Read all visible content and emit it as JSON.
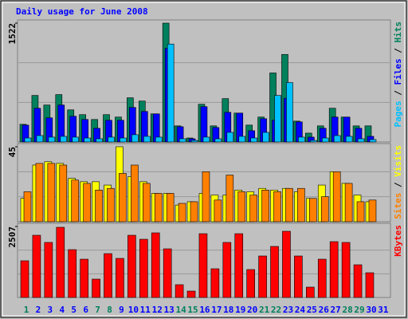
{
  "title": "Daily usage for June 2008",
  "chart_data": [
    {
      "type": "bar",
      "ylim": [
        0,
        1522
      ],
      "yticks": [
        1522
      ],
      "series": [
        {
          "name": "Hits",
          "color": "#00805c",
          "values": [
            226,
            596,
            473,
            607,
            411,
            350,
            288,
            350,
            319,
            566,
            524,
            360,
            1522,
            206,
            51,
            483,
            206,
            555,
            370,
            216,
            319,
            884,
            1121,
            267,
            113,
            206,
            432,
            319,
            206,
            206,
            0
          ]
        },
        {
          "name": "Files",
          "color": "#0000ff",
          "values": [
            216,
            432,
            309,
            473,
            329,
            288,
            175,
            278,
            278,
            442,
            391,
            360,
            1200,
            195,
            41,
            452,
            185,
            380,
            370,
            144,
            298,
            278,
            560,
            257,
            62,
            175,
            319,
            319,
            175,
            72,
            0
          ]
        },
        {
          "name": "Pages",
          "color": "#00c0ff",
          "values": [
            51,
            82,
            62,
            72,
            62,
            51,
            41,
            62,
            51,
            93,
            72,
            62,
            1254,
            41,
            20,
            62,
            41,
            123,
            72,
            51,
            123,
            596,
            761,
            62,
            20,
            51,
            82,
            72,
            41,
            31,
            0
          ]
        }
      ]
    },
    {
      "type": "bar",
      "ylim": [
        0,
        45
      ],
      "yticks": [
        45
      ],
      "series": [
        {
          "name": "Visits",
          "color": "#ffff00",
          "values": [
            14,
            34,
            36,
            35,
            26,
            24,
            24,
            22,
            45,
            27,
            24,
            17,
            17,
            10,
            12,
            17,
            16,
            16,
            19,
            18,
            20,
            19,
            20,
            18,
            14,
            22,
            30,
            23,
            16,
            12,
            0
          ]
        },
        {
          "name": "Sites",
          "color": "#ff8000",
          "values": [
            18,
            35,
            35,
            34,
            25,
            23,
            19,
            20,
            29,
            34,
            23,
            17,
            17,
            11,
            12,
            30,
            13,
            28,
            18,
            16,
            19,
            18,
            20,
            20,
            14,
            15,
            30,
            23,
            12,
            13,
            0
          ]
        }
      ]
    },
    {
      "type": "bar",
      "ylim": [
        0,
        2507
      ],
      "yticks": [
        2507
      ],
      "categories": [
        "1",
        "2",
        "3",
        "4",
        "5",
        "6",
        "7",
        "8",
        "9",
        "10",
        "11",
        "12",
        "13",
        "14",
        "15",
        "16",
        "17",
        "18",
        "19",
        "20",
        "21",
        "22",
        "23",
        "24",
        "25",
        "26",
        "27",
        "28",
        "29",
        "30",
        "31"
      ],
      "category_colors": [
        "#00805c",
        "#0000ff",
        "#0000ff",
        "#0000ff",
        "#0000ff",
        "#0000ff",
        "#00805c",
        "#00805c",
        "#0000ff",
        "#0000ff",
        "#0000ff",
        "#0000ff",
        "#0000ff",
        "#00805c",
        "#00805c",
        "#0000ff",
        "#0000ff",
        "#0000ff",
        "#0000ff",
        "#0000ff",
        "#00805c",
        "#00805c",
        "#0000ff",
        "#0000ff",
        "#0000ff",
        "#0000ff",
        "#0000ff",
        "#00805c",
        "#00805c",
        "#0000ff",
        "#0000ff"
      ],
      "series": [
        {
          "name": "KBytes",
          "color": "#ff0000",
          "values": [
            1296,
            2197,
            1944,
            2479,
            1690,
            1352,
            648,
            1549,
            1380,
            2197,
            2056,
            2282,
            1718,
            451,
            225,
            2253,
            1014,
            1944,
            2253,
            986,
            1465,
            1803,
            2338,
            1465,
            366,
            1352,
            1972,
            1944,
            1155,
            873,
            0
          ]
        }
      ]
    }
  ]
}
